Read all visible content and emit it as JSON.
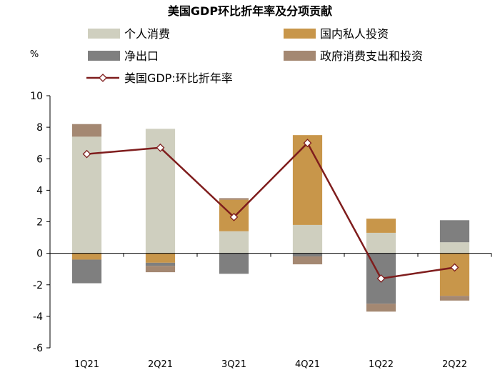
{
  "chart_data": {
    "type": "bar",
    "title": "美国GDP环比折年率及分项贡献",
    "ylabel": "%",
    "xlabel": "",
    "categories": [
      "1Q21",
      "2Q21",
      "3Q21",
      "4Q21",
      "1Q22",
      "2Q22"
    ],
    "ylim": [
      -6,
      10
    ],
    "yticks": [
      -6,
      -4,
      -2,
      0,
      2,
      4,
      6,
      8,
      10
    ],
    "stacked": true,
    "series": [
      {
        "name": "个人消费",
        "color": "#cfcfbf",
        "values": [
          7.4,
          7.9,
          1.4,
          1.8,
          1.3,
          0.7
        ]
      },
      {
        "name": "国内私人投资",
        "color": "#c8964a",
        "values": [
          -0.4,
          -0.6,
          2.0,
          5.7,
          0.9,
          -2.7
        ]
      },
      {
        "name": "净出口",
        "color": "#7f7f7f",
        "values": [
          -1.5,
          -0.2,
          -1.3,
          -0.2,
          -3.2,
          1.4
        ]
      },
      {
        "name": "政府消费支出和投资",
        "color": "#a48872",
        "values": [
          0.8,
          -0.4,
          0.1,
          -0.5,
          -0.5,
          -0.3
        ]
      }
    ],
    "line": {
      "name": "美国GDP:环比折年率",
      "color": "#7f1d1d",
      "values": [
        6.3,
        6.7,
        2.3,
        7.0,
        -1.6,
        -0.9
      ]
    },
    "legend_position": "top",
    "grid": false
  }
}
